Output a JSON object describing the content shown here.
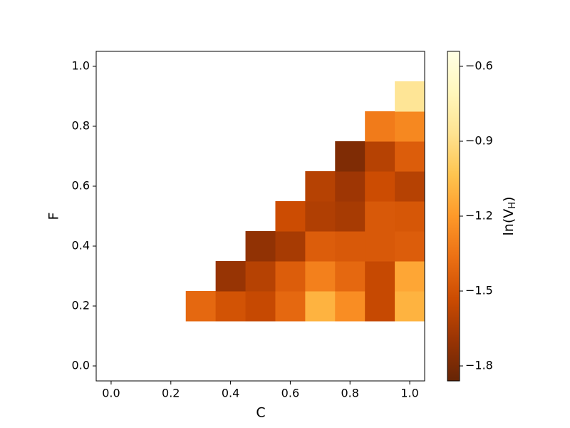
{
  "chart_data": {
    "type": "heatmap",
    "x_label": "C",
    "y_label": "F",
    "x": [
      0.3,
      0.4,
      0.5,
      0.6,
      0.7,
      0.8,
      0.9,
      1.0
    ],
    "y": [
      0.2,
      0.3,
      0.4,
      0.5,
      0.6,
      0.7,
      0.8,
      0.9
    ],
    "z": [
      [
        -1.4,
        -1.5,
        -1.55,
        -1.4,
        -1.1,
        -1.25,
        -1.55,
        -1.1
      ],
      [
        null,
        -1.7,
        -1.6,
        -1.45,
        -1.3,
        -1.4,
        -1.55,
        -1.15
      ],
      [
        null,
        null,
        -1.72,
        -1.65,
        -1.45,
        -1.47,
        -1.47,
        -1.45
      ],
      [
        null,
        null,
        null,
        -1.53,
        -1.62,
        -1.65,
        -1.47,
        -1.48
      ],
      [
        null,
        null,
        null,
        null,
        -1.6,
        -1.68,
        -1.53,
        -1.6
      ],
      [
        null,
        null,
        null,
        null,
        null,
        -1.78,
        -1.6,
        -1.45
      ],
      [
        null,
        null,
        null,
        null,
        null,
        null,
        -1.32,
        -1.27
      ],
      [
        null,
        null,
        null,
        null,
        null,
        null,
        null,
        -0.85
      ]
    ],
    "xlim": [
      -0.05,
      1.05
    ],
    "ylim": [
      -0.05,
      1.05
    ],
    "xticks": [
      {
        "value": 0,
        "label": "0.0"
      },
      0.2,
      0.4,
      0.6,
      0.8,
      {
        "value": 1,
        "label": "1.0"
      }
    ],
    "yticks": [
      {
        "value": 0,
        "label": "0.0"
      },
      0.2,
      0.4,
      0.6,
      0.8,
      {
        "value": 1,
        "label": "1.0"
      }
    ],
    "colormap": [
      "#662506",
      "#993404",
      "#cc4c02",
      "#ec7014",
      "#fe9929",
      "#fec44f",
      "#fee391",
      "#fff7bc",
      "#ffffe5"
    ],
    "clim": [
      -1.86,
      -0.54
    ],
    "colorbar_ticks": [
      {
        "value": -1.8,
        "label": "−1.8"
      },
      {
        "value": -1.5,
        "label": "−1.5"
      },
      {
        "value": -1.2,
        "label": "−1.2"
      },
      {
        "value": -0.9,
        "label": "−0.9"
      },
      {
        "value": -0.6,
        "label": "−0.6"
      }
    ],
    "colorbar_label": [
      "ln(V",
      "H",
      ")"
    ]
  }
}
